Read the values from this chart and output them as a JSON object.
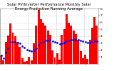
{
  "title": "Solar PV/Inverter Performance Monthly Solar Energy Production Running Average",
  "bar_values": [
    1.2,
    0.5,
    3.2,
    4.1,
    5.8,
    4.5,
    4.0,
    3.2,
    2.5,
    0.8,
    0.3,
    0.4,
    1.0,
    0.5,
    3.0,
    5.5,
    7.8,
    6.5,
    5.9,
    5.5,
    4.8,
    4.2,
    2.0,
    0.9,
    1.5,
    0.6,
    4.2,
    5.0,
    7.2,
    6.0,
    5.5,
    4.8,
    4.3,
    3.5,
    1.8,
    0.8,
    1.3,
    0.7,
    3.5,
    5.2,
    6.8,
    5.5
  ],
  "running_avg": [
    1.2,
    0.85,
    1.63,
    2.25,
    3.16,
    3.22,
    3.19,
    3.06,
    2.93,
    2.58,
    2.31,
    2.07,
    1.98,
    1.84,
    1.9,
    2.25,
    2.8,
    3.03,
    3.2,
    3.37,
    3.42,
    3.47,
    3.32,
    3.14,
    3.06,
    2.91,
    2.98,
    3.1,
    3.3,
    3.4,
    3.46,
    3.5,
    3.52,
    3.51,
    3.4,
    3.29,
    3.19,
    3.1,
    3.1,
    3.17,
    3.25,
    3.26
  ],
  "bar_color": "#ff0000",
  "avg_color": "#0000ff",
  "bg_color": "#ffffff",
  "grid_color": "#bbbbbb",
  "ylim": [
    0,
    8
  ],
  "yticks": [
    1,
    2,
    3,
    4,
    5,
    6,
    7,
    8
  ],
  "title_fontsize": 3.8,
  "tick_fontsize": 3.2
}
